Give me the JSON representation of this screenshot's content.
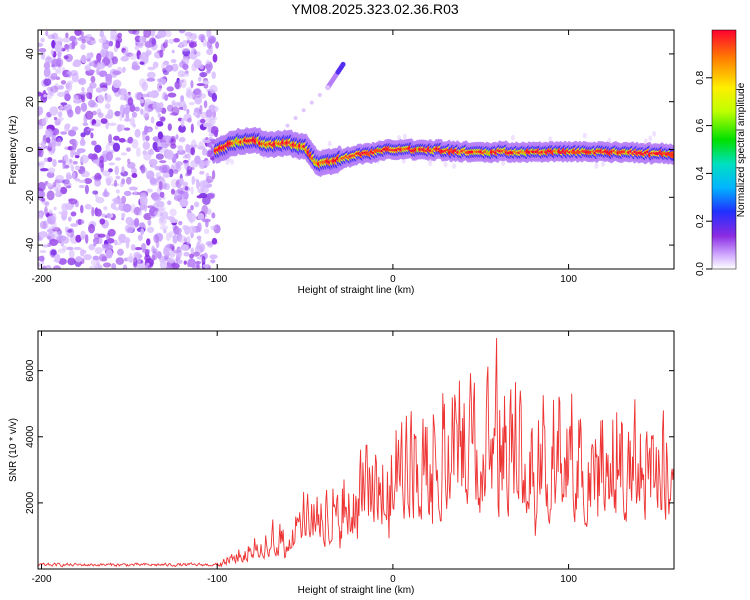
{
  "title": "YM08.2025.323.02.36.R03",
  "chart_data": [
    {
      "type": "heatmap",
      "xlabel": "Height of straight line (km)",
      "ylabel": "Frequency (Hz)",
      "xlim": [
        -202,
        160
      ],
      "ylim": [
        -50,
        50
      ],
      "xticks": [
        -200,
        -100,
        0,
        100
      ],
      "xtick_labels": [
        "-200",
        "-100",
        "0",
        "100"
      ],
      "yticks": [
        -40,
        -20,
        0,
        20,
        40
      ],
      "ytick_labels": [
        "-40",
        "-20",
        "0",
        "20",
        "40"
      ],
      "noise_region_x": [
        -202,
        -100
      ],
      "ridge": [
        {
          "x": -100,
          "y": 0
        },
        {
          "x": -90,
          "y": 3
        },
        {
          "x": -80,
          "y": 4
        },
        {
          "x": -70,
          "y": 2
        },
        {
          "x": -60,
          "y": 3
        },
        {
          "x": -50,
          "y": 1
        },
        {
          "x": -42,
          "y": -6
        },
        {
          "x": -35,
          "y": -5
        },
        {
          "x": -25,
          "y": -3
        },
        {
          "x": -10,
          "y": -1
        },
        {
          "x": 0,
          "y": 0
        },
        {
          "x": 20,
          "y": 0
        },
        {
          "x": 40,
          "y": -1
        },
        {
          "x": 60,
          "y": -1
        },
        {
          "x": 80,
          "y": -1
        },
        {
          "x": 100,
          "y": -1
        },
        {
          "x": 130,
          "y": -1
        },
        {
          "x": 160,
          "y": -2
        }
      ],
      "secondary_streak": {
        "x": [
          -37,
          -28
        ],
        "y": [
          26,
          36
        ]
      },
      "colorbar": {
        "label": "Normalized spectral amplitude",
        "range": [
          0,
          1
        ],
        "ticks": [
          0,
          0.2,
          0.4,
          0.6,
          0.8
        ],
        "tick_labels": [
          "0.0",
          "0.2",
          "0.4",
          "0.6",
          "0.8"
        ]
      }
    },
    {
      "type": "line",
      "xlabel": "Height of straight line (km)",
      "ylabel": "SNR (10 * v/v)",
      "xlim": [
        -202,
        160
      ],
      "ylim": [
        0,
        7200
      ],
      "xticks": [
        -200,
        -100,
        0,
        100
      ],
      "xtick_labels": [
        "-200",
        "-100",
        "0",
        "100"
      ],
      "yticks": [
        2000,
        4000,
        6000
      ],
      "ytick_labels": [
        "2000",
        "4000",
        "6000"
      ],
      "color": "#ee3333",
      "envelope_x": [
        -202,
        -100,
        -90,
        -80,
        -70,
        -60,
        -50,
        -40,
        -30,
        -20,
        -10,
        0,
        10,
        20,
        30,
        40,
        50,
        60,
        70,
        80,
        90,
        100,
        120,
        140,
        160
      ],
      "envelope_y": [
        150,
        150,
        350,
        650,
        900,
        1100,
        1400,
        1700,
        1900,
        2200,
        2500,
        2900,
        3200,
        3500,
        3700,
        3850,
        3900,
        3850,
        3800,
        3700,
        3600,
        3500,
        3400,
        3300,
        3200
      ]
    }
  ]
}
